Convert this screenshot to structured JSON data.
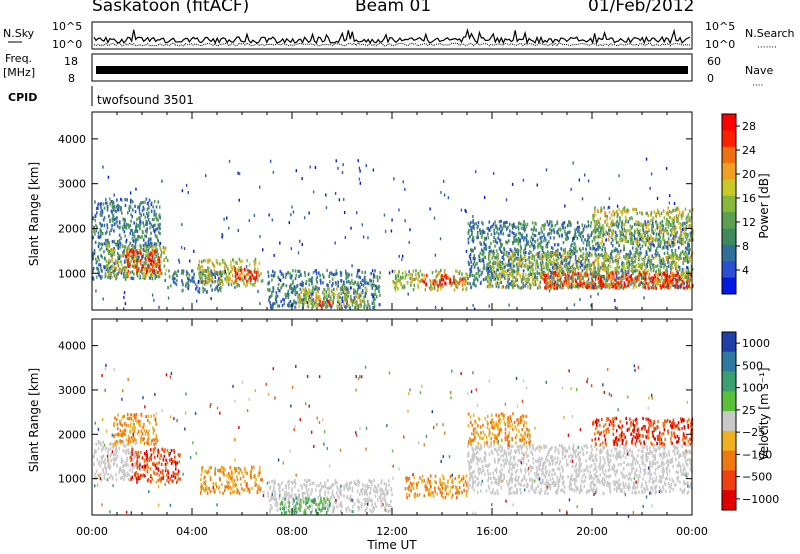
{
  "header": {
    "station": "Saskatoon (fitACF)",
    "beam": "Beam 01",
    "date": "01/Feb/2012"
  },
  "strip_panels": {
    "nsky": {
      "label": "N.Sky",
      "left_ticks": [
        "10^5",
        "10^0"
      ],
      "right_ticks": [
        "10^5",
        "10^0"
      ],
      "right_label": "N.Search",
      "right_label_dots": "·······"
    },
    "freq": {
      "label_line1": "Freq.",
      "label_line2": "[MHz]",
      "left_ticks": [
        "18",
        "8"
      ],
      "right_ticks": [
        "60",
        "0"
      ],
      "right_label": "Nave",
      "right_label_dots": "····"
    },
    "cpid": {
      "label": "CPID",
      "text": "twofsound 3501"
    }
  },
  "chart_data": [
    {
      "type": "heatmap",
      "name": "power-panel",
      "ylabel": "Slant Range [km]",
      "xlabel": "",
      "xlim": [
        0,
        24
      ],
      "ylim": [
        180,
        4600
      ],
      "y_ticks": [
        1000,
        2000,
        3000,
        4000
      ],
      "colorbar": {
        "label": "Power [dB]",
        "ticks": [
          "4",
          "8",
          "12",
          "16",
          "20",
          "24",
          "28"
        ],
        "range": [
          0,
          30
        ],
        "colors": [
          "#0018e0",
          "#2a4fd0",
          "#2f6f9a",
          "#3f8a5c",
          "#5aa050",
          "#86b83a",
          "#c9c92a",
          "#f0a020",
          "#f07010",
          "#ff2000",
          "#ff0000"
        ]
      },
      "echo_regions": [
        {
          "t0": 0.0,
          "t1": 2.7,
          "r0": 900,
          "r1": 2700,
          "level": "low"
        },
        {
          "t0": 0.5,
          "t1": 3.0,
          "r0": 950,
          "r1": 1650,
          "level": "mid"
        },
        {
          "t0": 1.3,
          "t1": 2.7,
          "r0": 1050,
          "r1": 1550,
          "level": "high"
        },
        {
          "t0": 3.0,
          "t1": 5.2,
          "r0": 600,
          "r1": 1100,
          "level": "low"
        },
        {
          "t0": 4.2,
          "t1": 6.8,
          "r0": 750,
          "r1": 1350,
          "level": "mid"
        },
        {
          "t0": 5.6,
          "t1": 6.6,
          "r0": 850,
          "r1": 1150,
          "level": "high"
        },
        {
          "t0": 7.0,
          "t1": 11.5,
          "r0": 250,
          "r1": 1100,
          "level": "low"
        },
        {
          "t0": 8.2,
          "t1": 11.0,
          "r0": 280,
          "r1": 700,
          "level": "mid"
        },
        {
          "t0": 9.0,
          "t1": 9.6,
          "r0": 250,
          "r1": 420,
          "level": "high"
        },
        {
          "t0": 12.0,
          "t1": 15.0,
          "r0": 650,
          "r1": 1100,
          "level": "mid"
        },
        {
          "t0": 13.2,
          "t1": 14.8,
          "r0": 750,
          "r1": 1000,
          "level": "high"
        },
        {
          "t0": 15.0,
          "t1": 24.0,
          "r0": 700,
          "r1": 2200,
          "level": "low"
        },
        {
          "t0": 15.8,
          "t1": 24.0,
          "r0": 700,
          "r1": 1500,
          "level": "mid"
        },
        {
          "t0": 18.0,
          "t1": 24.0,
          "r0": 700,
          "r1": 1050,
          "level": "high"
        },
        {
          "t0": 20.0,
          "t1": 24.0,
          "r0": 1700,
          "r1": 2500,
          "level": "mid"
        }
      ]
    },
    {
      "type": "heatmap",
      "name": "velocity-panel",
      "ylabel": "Slant Range [km]",
      "xlabel": "Time UT",
      "xlim": [
        0,
        24
      ],
      "ylim": [
        180,
        4600
      ],
      "y_ticks": [
        1000,
        2000,
        3000,
        4000
      ],
      "x_ticks": [
        "00:00",
        "04:00",
        "08:00",
        "12:00",
        "16:00",
        "20:00",
        "00:00"
      ],
      "x_tick_values": [
        0,
        4,
        8,
        12,
        16,
        20,
        24
      ],
      "colorbar": {
        "label": "Velocity [m s⁻¹]",
        "ticks": [
          "1000",
          "500",
          "100",
          "25",
          "−25",
          "−100",
          "−500",
          "−1000"
        ],
        "colors": [
          "#1f3fa8",
          "#2f7aa0",
          "#3aa070",
          "#59c03a",
          "#c8c8c8",
          "#f0b020",
          "#f07810",
          "#f04010",
          "#e00000"
        ]
      },
      "echo_regions": [
        {
          "t0": 0.0,
          "t1": 1.8,
          "r0": 1000,
          "r1": 1900,
          "level": "ground"
        },
        {
          "t0": 1.5,
          "t1": 3.5,
          "r0": 950,
          "r1": 1700,
          "level": "neg"
        },
        {
          "t0": 0.8,
          "t1": 2.6,
          "r0": 1800,
          "r1": 2500,
          "level": "negs"
        },
        {
          "t0": 4.3,
          "t1": 6.8,
          "r0": 700,
          "r1": 1300,
          "level": "negs"
        },
        {
          "t0": 7.0,
          "t1": 12.0,
          "r0": 280,
          "r1": 1000,
          "level": "ground"
        },
        {
          "t0": 7.5,
          "t1": 9.5,
          "r0": 250,
          "r1": 600,
          "level": "posg"
        },
        {
          "t0": 12.5,
          "t1": 15.0,
          "r0": 600,
          "r1": 1100,
          "level": "negs"
        },
        {
          "t0": 15.0,
          "t1": 24.0,
          "r0": 700,
          "r1": 1800,
          "level": "ground"
        },
        {
          "t0": 15.0,
          "t1": 17.5,
          "r0": 1800,
          "r1": 2500,
          "level": "negs"
        },
        {
          "t0": 20.0,
          "t1": 24.0,
          "r0": 1800,
          "r1": 2400,
          "level": "neg"
        }
      ]
    }
  ]
}
